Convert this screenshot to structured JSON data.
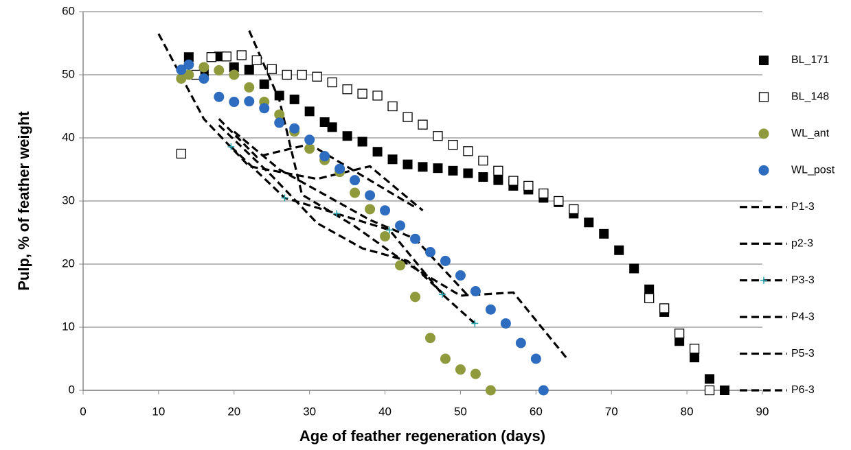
{
  "chart_data": {
    "type": "scatter",
    "x_label": "Age of feather regeneration (days)",
    "y_label": "Pulp, % of feather weight",
    "xlim": [
      0,
      90
    ],
    "xticks": [
      0,
      10,
      20,
      30,
      40,
      50,
      60,
      70,
      80,
      90
    ],
    "ylim": [
      0,
      60
    ],
    "yticks": [
      0,
      10,
      20,
      30,
      40,
      50,
      60
    ],
    "grid": true,
    "legend": "right",
    "series": [
      {
        "name": "BL_171",
        "color": "#000000",
        "marker": "square-filled",
        "x": [
          14,
          16,
          18,
          20,
          22,
          24,
          26,
          28,
          30,
          32,
          33,
          35,
          37,
          39,
          41,
          43,
          45,
          47,
          49,
          51,
          53,
          55,
          57,
          59,
          61,
          63,
          65,
          67,
          69,
          71,
          73,
          75,
          77,
          79,
          81,
          83,
          85
        ],
        "values": [
          52.8,
          50.2,
          52.9,
          51.2,
          50.8,
          48.5,
          46.7,
          46.1,
          44.2,
          42.5,
          41.7,
          40.3,
          39.4,
          37.8,
          36.6,
          35.8,
          35.4,
          35.2,
          34.8,
          34.4,
          33.8,
          33.3,
          32.4,
          31.8,
          30.5,
          29.8,
          28,
          26.6,
          24.8,
          22.2,
          19.3,
          16,
          12.4,
          7.8,
          5.2,
          1.8,
          0
        ]
      },
      {
        "name": "BL_148",
        "color": "#000000",
        "marker": "square-open",
        "x": [
          13,
          15,
          17,
          19,
          21,
          23,
          25,
          27,
          29,
          31,
          33,
          35,
          37,
          39,
          41,
          43,
          45,
          47,
          49,
          51,
          53,
          55,
          57,
          59,
          61,
          63,
          65,
          75,
          77,
          79,
          81,
          83
        ],
        "values": [
          37.5,
          50,
          52.8,
          52.9,
          53.1,
          52.3,
          50.9,
          50,
          50,
          49.7,
          48.8,
          47.7,
          47,
          46.7,
          45,
          43.3,
          42.1,
          40.3,
          38.9,
          37.9,
          36.4,
          34.8,
          33.2,
          32.4,
          31.2,
          30,
          28.7,
          14.6,
          13,
          9,
          6.6,
          0
        ]
      },
      {
        "name": "WL_ant",
        "color": "#8f9a3c",
        "marker": "circle",
        "x": [
          13,
          14,
          16,
          18,
          20,
          22,
          24,
          26,
          28,
          30,
          32,
          34,
          36,
          38,
          40,
          42,
          44,
          46,
          48,
          50,
          52,
          54
        ],
        "values": [
          49.4,
          50,
          51.2,
          50.7,
          50,
          48,
          45.7,
          43.7,
          41,
          38.3,
          36.5,
          34.6,
          31.3,
          28.7,
          24.4,
          19.8,
          14.8,
          8.3,
          5,
          3.3,
          2.6,
          0
        ]
      },
      {
        "name": "WL_post",
        "color": "#2e6cc0",
        "marker": "circle",
        "x": [
          13,
          14,
          16,
          18,
          20,
          22,
          24,
          26,
          28,
          30,
          32,
          34,
          36,
          38,
          40,
          42,
          44,
          46,
          48,
          50,
          52,
          54,
          56,
          58,
          60,
          61
        ],
        "values": [
          50.8,
          51.6,
          49.4,
          46.5,
          45.7,
          45.8,
          44.7,
          42.4,
          41.5,
          39.7,
          37.1,
          35.1,
          33.3,
          30.9,
          28.5,
          26.1,
          24,
          21.9,
          20.5,
          18.2,
          15.7,
          12.8,
          10.6,
          7.5,
          5,
          0
        ]
      },
      {
        "name": "P1-3",
        "color": "#000000",
        "marker": "none",
        "line": "dashed",
        "x": [
          10,
          16,
          22,
          31,
          38,
          45
        ],
        "values": [
          56.5,
          43,
          35.5,
          33.5,
          35.5,
          28.5
        ]
      },
      {
        "name": "p2-3",
        "color": "#000000",
        "marker": "none",
        "line": "dashed",
        "x": [
          18,
          23,
          30,
          37,
          44
        ],
        "values": [
          43,
          37,
          39,
          34,
          29
        ]
      },
      {
        "name": "P3-3",
        "color": "#000000",
        "marker": "plus",
        "marker_color": "#2aa6b0",
        "line": "dashed",
        "x": [
          19.6,
          26.7,
          33.6,
          40.6,
          47.6,
          51.9
        ],
        "values": [
          38.6,
          30.5,
          28,
          25.4,
          15.2,
          10.6
        ]
      },
      {
        "name": "P4-3",
        "color": "#000000",
        "marker": "none",
        "line": "dashed",
        "x": [
          22,
          26,
          29,
          36,
          43,
          50,
          57,
          64
        ],
        "values": [
          57,
          46,
          31,
          26,
          20,
          15,
          15.5,
          5.2
        ]
      },
      {
        "name": "P5-3",
        "color": "#000000",
        "marker": "none",
        "line": "dashed",
        "x": [
          18,
          25,
          31,
          37,
          43,
          48
        ],
        "values": [
          42,
          34,
          26.5,
          22.5,
          20.5,
          15
        ]
      },
      {
        "name": "P6-3",
        "color": "#000000",
        "marker": "none",
        "line": "dashed",
        "x": [
          20,
          26,
          32,
          38,
          44,
          51
        ],
        "values": [
          41,
          35,
          31,
          27,
          24,
          15
        ]
      }
    ]
  }
}
